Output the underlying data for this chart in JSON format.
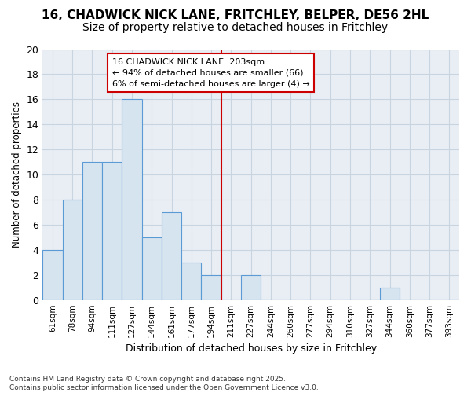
{
  "title": "16, CHADWICK NICK LANE, FRITCHLEY, BELPER, DE56 2HL",
  "subtitle": "Size of property relative to detached houses in Fritchley",
  "xlabel": "Distribution of detached houses by size in Fritchley",
  "ylabel": "Number of detached properties",
  "bin_labels": [
    "61sqm",
    "78sqm",
    "94sqm",
    "111sqm",
    "127sqm",
    "144sqm",
    "161sqm",
    "177sqm",
    "194sqm",
    "211sqm",
    "227sqm",
    "244sqm",
    "260sqm",
    "277sqm",
    "294sqm",
    "310sqm",
    "327sqm",
    "344sqm",
    "360sqm",
    "377sqm",
    "393sqm"
  ],
  "bar_heights": [
    4,
    8,
    11,
    11,
    16,
    5,
    7,
    3,
    2,
    0,
    2,
    0,
    0,
    0,
    0,
    0,
    0,
    1,
    0,
    0,
    0
  ],
  "bar_color": "#d6e4f0",
  "bar_edgecolor": "#5b9bd5",
  "vline_x": 8.53,
  "vline_color": "#cc0000",
  "annotation_text": "16 CHADWICK NICK LANE: 203sqm\n← 94% of detached houses are smaller (66)\n6% of semi-detached houses are larger (4) →",
  "annotation_box_color": "#ffffff",
  "annotation_box_edgecolor": "#cc0000",
  "annotation_fontsize": 8,
  "grid_color": "#c8d4e0",
  "plot_bg_color": "#e8eef4",
  "fig_bg_color": "#ffffff",
  "footer_text": "Contains HM Land Registry data © Crown copyright and database right 2025.\nContains public sector information licensed under the Open Government Licence v3.0.",
  "ylim": [
    0,
    20
  ],
  "yticks": [
    0,
    2,
    4,
    6,
    8,
    10,
    12,
    14,
    16,
    18,
    20
  ],
  "title_fontsize": 11,
  "subtitle_fontsize": 10,
  "xlabel_fontsize": 9,
  "ylabel_fontsize": 8.5
}
